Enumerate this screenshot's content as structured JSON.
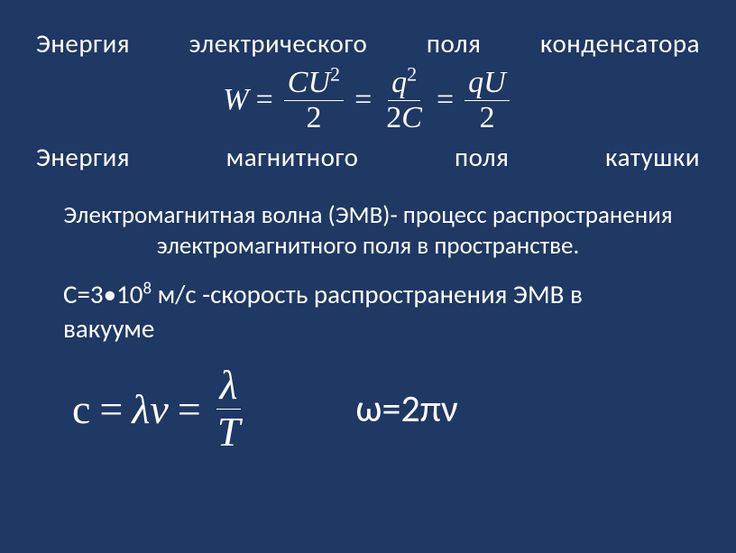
{
  "header": {
    "line1": "Энергия электрического поля конденсатора",
    "line2": "Энергия магнитного поля катушки"
  },
  "formula1": {
    "lhs": "W",
    "eq": "=",
    "term1_num_c": "C",
    "term1_num_u": "U",
    "term1_num_exp": "2",
    "term1_den": "2",
    "term2_num_q": "q",
    "term2_num_exp": "2",
    "term2_den_2": "2",
    "term2_den_c": "C",
    "term3_num_q": "q",
    "term3_num_u": "U",
    "term3_den": "2"
  },
  "definition": "Электромагнитная волна (ЭМВ)- процесс распространения электромагнитного поля в пространстве.",
  "speed": {
    "prefix": "С=3•10",
    "exp": "8",
    "suffix": " м/с -скорость распространения ЭМВ в вакууме"
  },
  "formula2": {
    "c": "с",
    "eq": "=",
    "lambda": "λ",
    "nu": "ν",
    "T": "T"
  },
  "omega": {
    "text": "ω=2πν"
  },
  "styling": {
    "background_color": "#1f3864",
    "text_color": "#ffffff",
    "body_fontsize": 29,
    "def_fontsize": 27,
    "formula1_fontsize": 34,
    "formula2_fontsize": 46,
    "omega_fontsize": 42,
    "font_family_body": "Calibri",
    "font_family_math": "Cambria Math"
  }
}
